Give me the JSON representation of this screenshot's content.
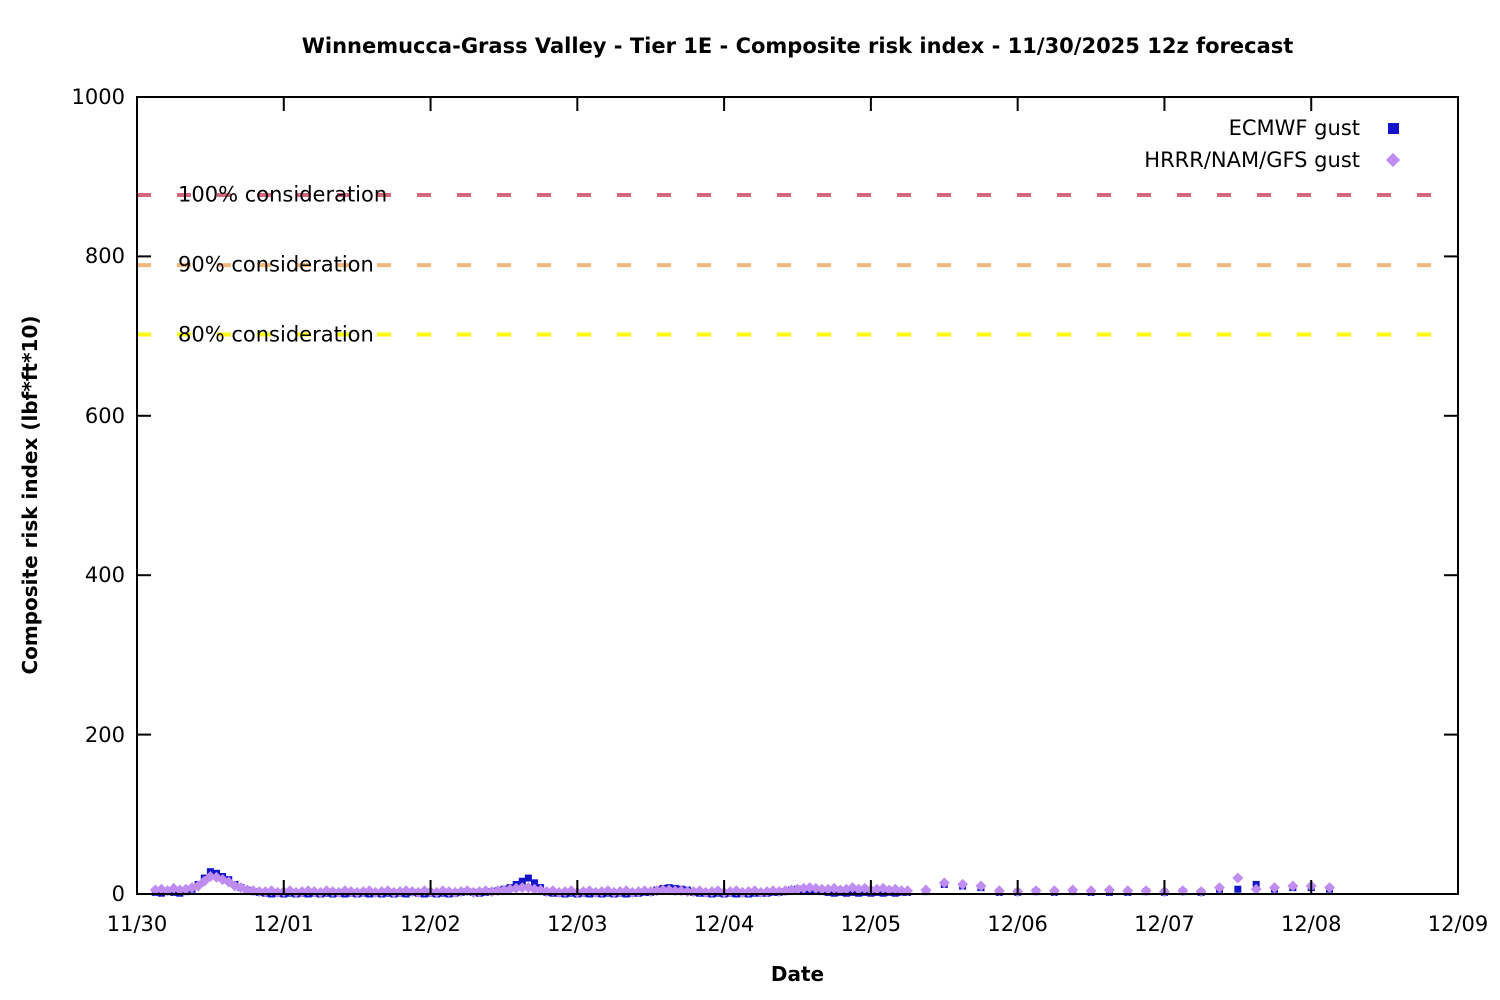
{
  "title": "Winnemucca-Grass Valley - Tier 1E - Composite risk index - 11/30/2025 12z forecast",
  "legend": {
    "position": "top-right",
    "entries": [
      {
        "label": "ECMWF gust",
        "marker": "square",
        "color": "#1414c8"
      },
      {
        "label": "HRRR/NAM/GFS gust",
        "marker": "diamond",
        "color": "#bf8cf2"
      }
    ]
  },
  "thresholds": [
    {
      "label": "100% consideration",
      "value": 877,
      "color": "#d4687f"
    },
    {
      "label": "90% consideration",
      "value": 789,
      "color": "#f5b87c"
    },
    {
      "label": "80% consideration",
      "value": 702,
      "color": "#ffff00"
    }
  ],
  "chart_data": {
    "type": "scatter",
    "title": "Winnemucca-Grass Valley - Tier 1E - Composite risk index - 11/30/2025 12z forecast",
    "xlabel": "Date",
    "ylabel": "Composite risk index (lbf*ft*10)",
    "ylim": [
      0,
      1000
    ],
    "yticks": [
      0,
      200,
      400,
      600,
      800,
      1000
    ],
    "xticks": [
      "11/30",
      "12/01",
      "12/02",
      "12/03",
      "12/04",
      "12/05",
      "12/06",
      "12/07",
      "12/08",
      "12/09"
    ],
    "x_domain_hours": [
      0,
      216
    ],
    "grid": false,
    "legend_position": "top-right",
    "x_hours": [
      3,
      4,
      5,
      6,
      7,
      8,
      9,
      10,
      11,
      12,
      13,
      14,
      15,
      16,
      17,
      18,
      19,
      20,
      21,
      22,
      23,
      24,
      25,
      26,
      27,
      28,
      29,
      30,
      31,
      32,
      33,
      34,
      35,
      36,
      37,
      38,
      39,
      40,
      41,
      42,
      43,
      44,
      45,
      46,
      47,
      48,
      49,
      50,
      51,
      52,
      53,
      54,
      55,
      56,
      57,
      58,
      59,
      60,
      61,
      62,
      63,
      64,
      65,
      66,
      67,
      68,
      69,
      70,
      71,
      72,
      73,
      74,
      75,
      76,
      77,
      78,
      79,
      80,
      81,
      82,
      83,
      84,
      85,
      86,
      87,
      88,
      89,
      90,
      91,
      92,
      93,
      94,
      95,
      96,
      97,
      98,
      99,
      100,
      101,
      102,
      103,
      104,
      105,
      106,
      107,
      108,
      109,
      110,
      111,
      112,
      113,
      114,
      115,
      116,
      117,
      118,
      119,
      120,
      121,
      122,
      123,
      124,
      125,
      126,
      129,
      132,
      135,
      138,
      141,
      144,
      147,
      150,
      153,
      156,
      159,
      162,
      165,
      168,
      171,
      174,
      177,
      180,
      183,
      186,
      189,
      192,
      195
    ],
    "series": [
      {
        "name": "ECMWF gust",
        "marker": "square",
        "color": "#1414c8",
        "values": [
          2,
          1,
          3,
          2,
          1,
          3,
          6,
          12,
          20,
          28,
          26,
          22,
          18,
          12,
          8,
          5,
          3,
          2,
          1,
          0,
          1,
          0,
          1,
          0,
          1,
          0,
          1,
          0,
          1,
          0,
          1,
          0,
          1,
          0,
          1,
          0,
          1,
          0,
          1,
          0,
          1,
          0,
          2,
          1,
          0,
          1,
          0,
          1,
          0,
          1,
          2,
          3,
          2,
          1,
          2,
          3,
          4,
          6,
          8,
          12,
          16,
          20,
          14,
          8,
          2,
          1,
          1,
          0,
          1,
          0,
          1,
          0,
          1,
          0,
          1,
          0,
          1,
          0,
          1,
          1,
          2,
          2,
          5,
          7,
          8,
          7,
          6,
          5,
          2,
          1,
          1,
          0,
          1,
          0,
          1,
          0,
          1,
          0,
          1,
          1,
          1,
          2,
          2,
          3,
          5,
          6,
          5,
          4,
          4,
          3,
          2,
          1,
          2,
          1,
          2,
          1,
          2,
          1,
          2,
          1,
          2,
          1,
          2,
          2,
          3,
          12,
          10,
          8,
          2,
          2,
          3,
          2,
          3,
          2,
          2,
          2,
          3,
          2,
          3,
          2,
          6,
          6,
          12,
          6,
          8,
          8,
          6
        ]
      },
      {
        "name": "HRRR/NAM/GFS gust",
        "marker": "diamond",
        "color": "#bf8cf2",
        "values": [
          5,
          6,
          4,
          7,
          5,
          6,
          8,
          10,
          16,
          22,
          21,
          18,
          15,
          10,
          8,
          5,
          4,
          3,
          3,
          4,
          2,
          3,
          4,
          2,
          3,
          4,
          3,
          2,
          4,
          3,
          2,
          4,
          3,
          2,
          3,
          4,
          2,
          3,
          4,
          2,
          3,
          4,
          3,
          2,
          4,
          3,
          2,
          4,
          3,
          2,
          3,
          4,
          2,
          3,
          4,
          3,
          4,
          5,
          6,
          7,
          8,
          8,
          6,
          5,
          3,
          4,
          2,
          3,
          4,
          2,
          3,
          4,
          2,
          3,
          4,
          2,
          3,
          4,
          2,
          3,
          4,
          3,
          4,
          5,
          5,
          4,
          4,
          3,
          3,
          4,
          2,
          3,
          4,
          2,
          3,
          4,
          2,
          3,
          4,
          2,
          3,
          4,
          3,
          4,
          5,
          6,
          7,
          8,
          7,
          6,
          6,
          7,
          5,
          6,
          8,
          6,
          7,
          5,
          6,
          7,
          5,
          6,
          4,
          4,
          5,
          14,
          12,
          10,
          4,
          3,
          4,
          4,
          5,
          4,
          5,
          4,
          4,
          3,
          4,
          3,
          8,
          20,
          6,
          8,
          10,
          10,
          8
        ]
      }
    ]
  }
}
